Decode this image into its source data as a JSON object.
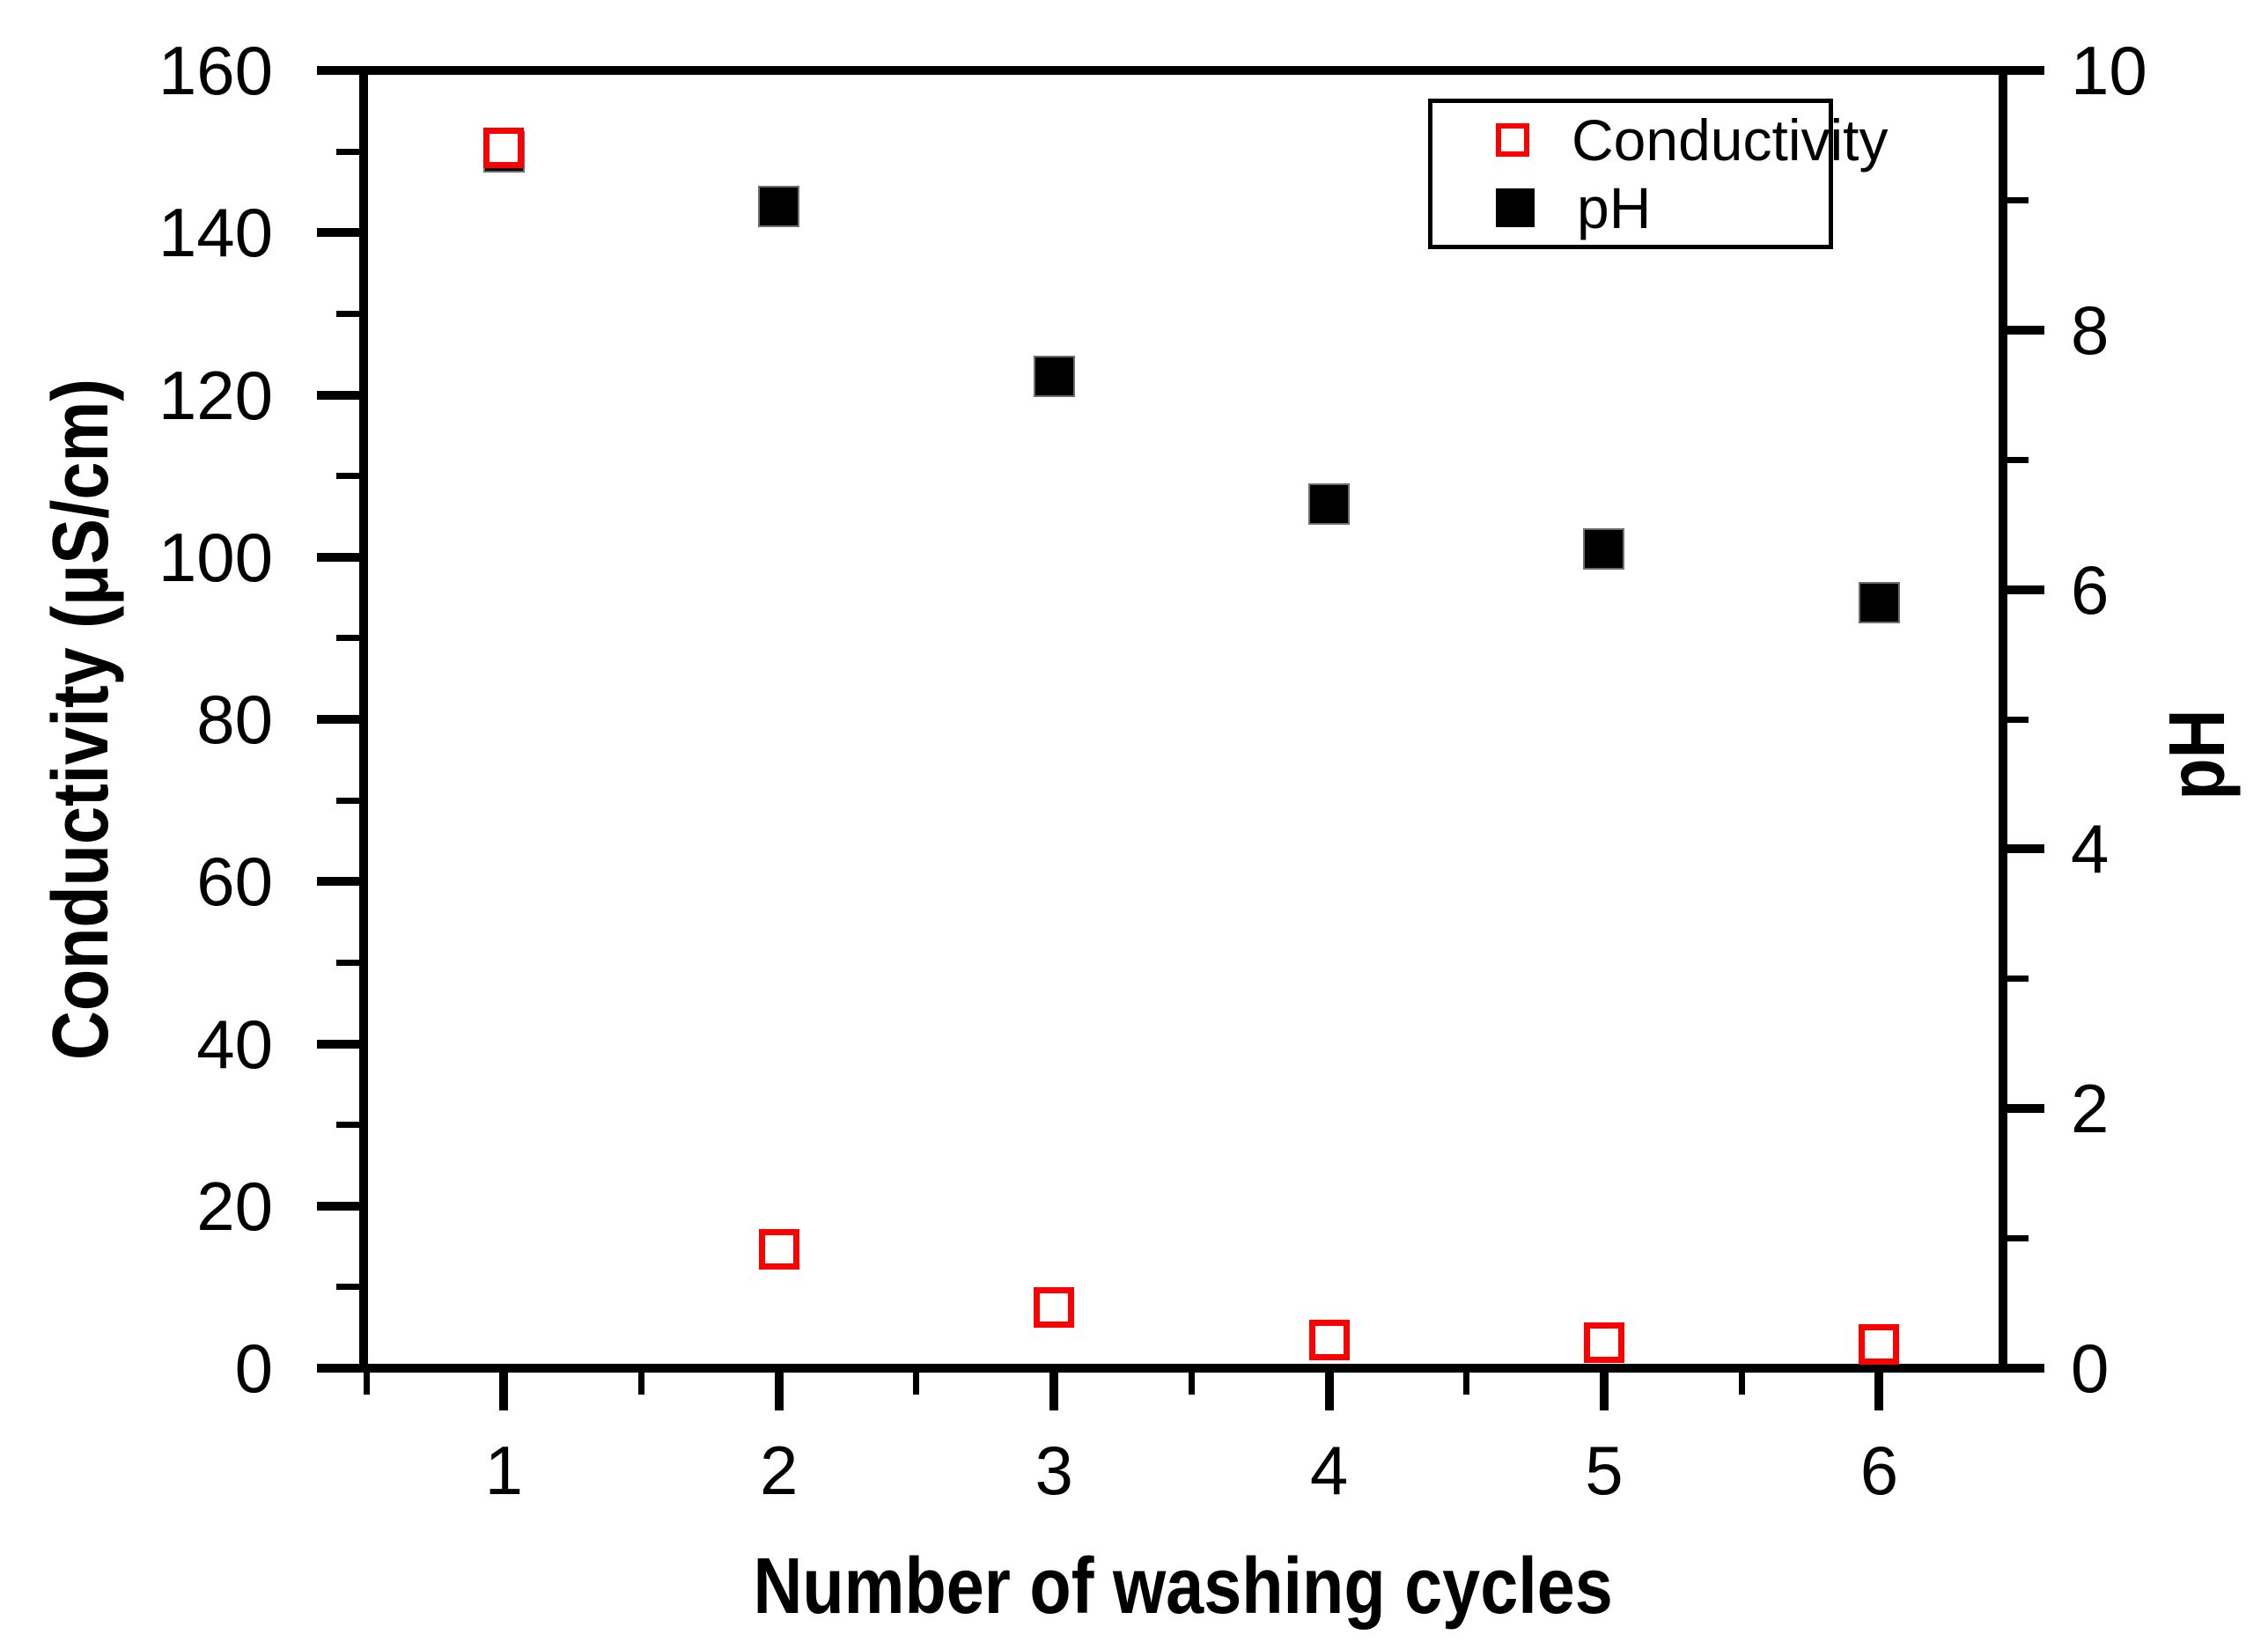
{
  "figure": {
    "background_color": "#ffffff",
    "axis_color": "#000000"
  },
  "chart_data": {
    "type": "scatter",
    "title": "",
    "xlabel": "Number of washing cycles",
    "ylabel_left": "Conductivity (μS/cm)",
    "ylabel_right": "pH",
    "grid": false,
    "x_axis": {
      "min": 0.49,
      "max": 6.45,
      "major_ticks": [
        1,
        2,
        3,
        4,
        5,
        6
      ],
      "major_tick_labels": [
        "1",
        "2",
        "3",
        "4",
        "5",
        "6"
      ],
      "minor_ticks": [
        0.5,
        1.5,
        2.5,
        3.5,
        4.5,
        5.5
      ]
    },
    "y_left_axis": {
      "min": 0,
      "max": 160,
      "major_ticks": [
        0,
        20,
        40,
        60,
        80,
        100,
        120,
        140,
        160
      ],
      "major_tick_labels": [
        "0",
        "20",
        "40",
        "60",
        "80",
        "100",
        "120",
        "140",
        "160"
      ],
      "minor_ticks": [
        10,
        30,
        50,
        70,
        90,
        110,
        130,
        150
      ]
    },
    "y_right_axis": {
      "min": 0,
      "max": 10,
      "major_ticks": [
        0,
        2,
        4,
        6,
        8,
        10
      ],
      "major_tick_labels": [
        "0",
        "2",
        "4",
        "6",
        "8",
        "10"
      ],
      "minor_ticks": [
        1,
        3,
        5,
        7,
        9
      ]
    },
    "series": [
      {
        "name": "Conductivity",
        "axis": "left",
        "marker": "open-square",
        "color": "#ff0000",
        "x": [
          1,
          2,
          3,
          4,
          5,
          6
        ],
        "y": [
          150.5,
          14.7,
          7.5,
          3.5,
          3.1,
          2.9
        ]
      },
      {
        "name": "pH",
        "axis": "right",
        "marker": "filled-square",
        "color": "#000000",
        "x": [
          1,
          2,
          3,
          4,
          5,
          6
        ],
        "y": [
          9.37,
          8.95,
          7.64,
          6.66,
          6.31,
          5.9
        ]
      }
    ],
    "legend": {
      "position": "top-right",
      "entries": [
        "Conductivity",
        "pH"
      ]
    }
  }
}
